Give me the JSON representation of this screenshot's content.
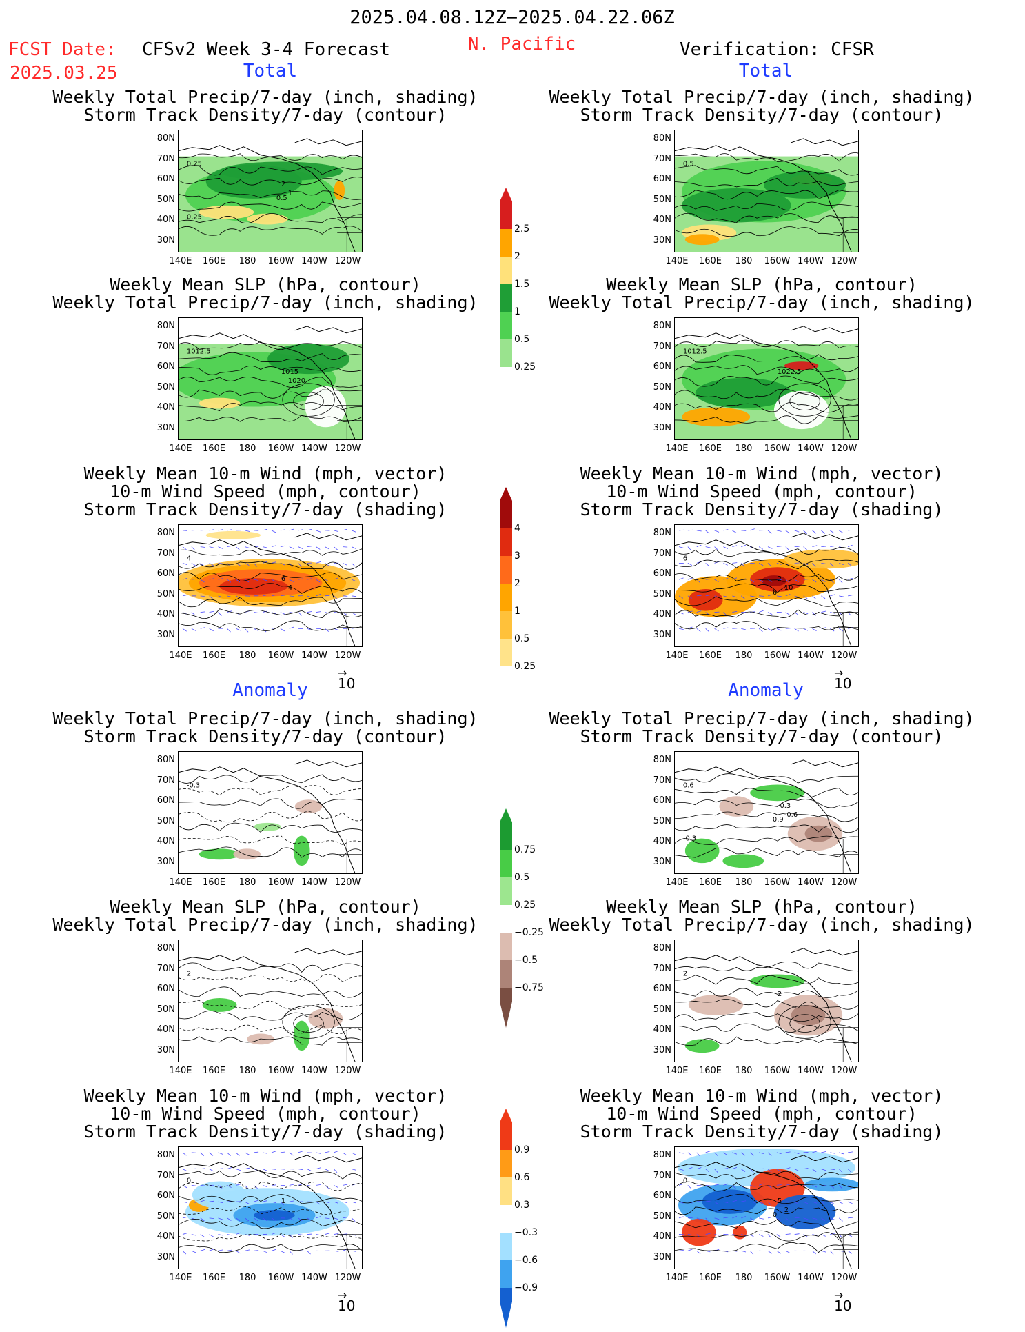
{
  "header": {
    "date_range": "2025.04.08.12Z−2025.04.22.06Z",
    "fcst_label": "FCST Date:",
    "fcst_date": "2025.03.25",
    "model": "CFSv2 Week 3-4 Forecast",
    "region": "N. Pacific",
    "verification": "Verification: CFSR"
  },
  "section_labels": {
    "total": "Total",
    "anomaly": "Anomaly"
  },
  "titles": {
    "precip_storm": [
      "Weekly Total Precip/7-day (inch, shading)",
      "Storm Track Density/7-day (contour)"
    ],
    "slp_precip": [
      "Weekly Mean SLP (hPa, contour)",
      "Weekly Total Precip/7-day (inch, shading)"
    ],
    "wind_storm": [
      "Weekly Mean 10-m Wind (mph, vector)",
      "10-m Wind Speed (mph, contour)",
      "Storm Track Density/7-day (shading)"
    ]
  },
  "axes": {
    "lat_ticks": [
      "80N",
      "70N",
      "60N",
      "50N",
      "40N",
      "30N"
    ],
    "lon_ticks": [
      "140E",
      "160E",
      "180",
      "160W",
      "140W",
      "120W"
    ]
  },
  "vector_ref": "10",
  "colorbars": {
    "precip_total": {
      "labels": [
        "2.5",
        "2",
        "1.5",
        "1",
        "0.5",
        "0.25"
      ],
      "colors": [
        "#d71e1e",
        "#ffa500",
        "#ffe17a",
        "#1f9e36",
        "#4fd152",
        "#9ae38e",
        "#ffffff"
      ]
    },
    "storm_total": {
      "labels": [
        "4",
        "3",
        "2",
        "1",
        "0.5",
        "0.25"
      ],
      "colors": [
        "#a00b0b",
        "#e02b10",
        "#ff6a1a",
        "#ffa500",
        "#ffc13a",
        "#ffe38a",
        "#ffffff"
      ]
    },
    "precip_anom": {
      "labels": [
        "0.75",
        "0.5",
        "0.25",
        "−0.25",
        "−0.5",
        "−0.75"
      ],
      "colors": [
        "#1c9b31",
        "#48cc46",
        "#9de68f",
        "#ffffff",
        "#dcbcb0",
        "#ad8478",
        "#7a4e42"
      ]
    },
    "storm_anom": {
      "labels": [
        "0.9",
        "0.6",
        "0.3",
        "−0.3",
        "−0.6",
        "−0.9"
      ],
      "colors": [
        "#ef3a17",
        "#ff9b16",
        "#ffe083",
        "#ffffff",
        "#a3e0ff",
        "#3fa3ef",
        "#1460d0"
      ]
    }
  },
  "panels": [
    {
      "id": "fc-total-precip",
      "col": "forecast",
      "labels": [
        "0.25",
        "2",
        "1",
        "0.5",
        "0.25"
      ]
    },
    {
      "id": "vf-total-precip",
      "col": "verification",
      "labels": [
        "0.5"
      ]
    },
    {
      "id": "fc-total-slp",
      "col": "forecast",
      "labels": [
        "1012.5",
        "1015",
        "1020"
      ]
    },
    {
      "id": "vf-total-slp",
      "col": "verification",
      "labels": [
        "1012.5",
        "1022.5"
      ]
    },
    {
      "id": "fc-total-wind",
      "col": "forecast",
      "labels": [
        "4",
        "6",
        "4"
      ]
    },
    {
      "id": "vf-total-wind",
      "col": "verification",
      "labels": [
        "6",
        "2",
        "10",
        "6"
      ]
    },
    {
      "id": "fc-anom-precip",
      "col": "forecast",
      "labels": [
        "-0.3"
      ]
    },
    {
      "id": "vf-anom-precip",
      "col": "verification",
      "labels": [
        "0.6",
        "-0.3",
        "-0.6",
        "0.9",
        "-0.3"
      ]
    },
    {
      "id": "fc-anom-slp",
      "col": "forecast",
      "labels": [
        "2"
      ]
    },
    {
      "id": "vf-anom-slp",
      "col": "verification",
      "labels": [
        "2",
        "2"
      ]
    },
    {
      "id": "fc-anom-wind",
      "col": "forecast",
      "labels": [
        "0",
        "1"
      ]
    },
    {
      "id": "vf-anom-wind",
      "col": "verification",
      "labels": [
        "0",
        "5",
        "2",
        "0"
      ]
    }
  ]
}
